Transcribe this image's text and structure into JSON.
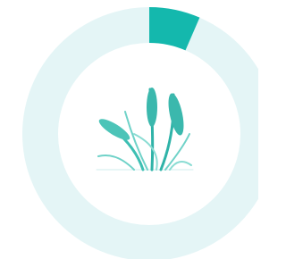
{
  "chart_data": {
    "type": "progress-ring",
    "value": 6.5,
    "max": 100,
    "color": "#14b8ad",
    "track_color": "#e4f5f6"
  }
}
